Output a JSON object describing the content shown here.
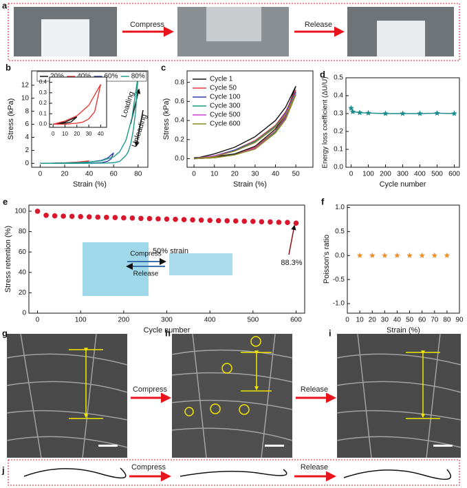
{
  "photo_panels": [
    {
      "label": "a",
      "steps": [
        "Compress",
        "Release"
      ]
    },
    {
      "labels": [
        "g",
        "h",
        "i"
      ],
      "steps": [
        "Compress",
        "Release"
      ]
    },
    {
      "label": "j",
      "steps": [
        "Compress",
        "Release"
      ]
    }
  ],
  "chart_data": [
    {
      "type": "line",
      "panel": "b",
      "x_label": "Strain (%)",
      "y_label": "Stress (kPa)",
      "legend": "top",
      "annotations": [
        "Loading",
        "Unloading"
      ],
      "xlim": [
        -7,
        88
      ],
      "ylim": [
        -0.6,
        14.2
      ],
      "xticks": [
        0,
        20,
        40,
        60,
        80
      ],
      "yticks": [
        0,
        2,
        4,
        6,
        8,
        10,
        12
      ],
      "series": [
        {
          "name": "20%",
          "color": "#111111",
          "x": [
            0,
            10,
            20,
            15,
            10,
            0
          ],
          "values": [
            0,
            0.02,
            0.07,
            0.02,
            0.01,
            0
          ]
        },
        {
          "name": "40%",
          "color": "#e8393a",
          "x": [
            0,
            10,
            20,
            30,
            40,
            35,
            30,
            25,
            20,
            10,
            0
          ],
          "values": [
            0,
            0.03,
            0.08,
            0.18,
            0.38,
            0.12,
            0.05,
            0.02,
            0.01,
            0,
            0
          ]
        },
        {
          "name": "60%",
          "color": "#2c3da8",
          "x": [
            0,
            10,
            20,
            30,
            40,
            50,
            55,
            60,
            58,
            55,
            50,
            40,
            20,
            0
          ],
          "values": [
            0,
            0.02,
            0.05,
            0.1,
            0.2,
            0.45,
            0.8,
            1.6,
            0.7,
            0.3,
            0.1,
            0.03,
            0,
            0
          ]
        },
        {
          "name": "80%",
          "color": "#1b9a8a",
          "x": [
            0,
            10,
            20,
            30,
            40,
            50,
            60,
            65,
            70,
            75,
            80,
            78,
            76,
            74,
            72,
            70,
            65,
            60,
            55,
            40,
            20,
            0
          ],
          "values": [
            0,
            0.02,
            0.05,
            0.1,
            0.2,
            0.4,
            1.0,
            1.8,
            3.5,
            7,
            13.5,
            8,
            5,
            3,
            1.8,
            1.2,
            0.3,
            0.1,
            0.05,
            0.01,
            0,
            0
          ]
        }
      ]
    },
    {
      "type": "line",
      "xlim": [
        -3,
        45
      ],
      "ylim": [
        -0.03,
        0.45
      ],
      "xticks": [
        0,
        10,
        20,
        30,
        40
      ],
      "yticks": [
        {
          "value": 0,
          "label": "0.0"
        },
        0.1,
        0.2,
        0.3,
        0.4
      ],
      "series": [
        {
          "color": "#111111",
          "x": [
            0,
            10,
            20,
            15,
            10,
            0
          ],
          "values": [
            0,
            0.02,
            0.07,
            0.02,
            0.01,
            0
          ]
        },
        {
          "color": "#e8393a",
          "x": [
            0,
            10,
            20,
            30,
            40,
            35,
            30,
            25,
            20,
            10,
            0
          ],
          "values": [
            0,
            0.03,
            0.08,
            0.18,
            0.38,
            0.12,
            0.05,
            0.02,
            0.01,
            0,
            0
          ]
        }
      ]
    },
    {
      "type": "line",
      "panel": "c",
      "x_label": "Strain (%)",
      "y_label": "Stress (kPa)",
      "legend": "upper left",
      "xlim": [
        -3.4,
        58.4
      ],
      "ylim": [
        -0.09,
        0.92
      ],
      "xticks": [
        0,
        10,
        20,
        30,
        40,
        50
      ],
      "yticks": [
        {
          "value": 0,
          "label": "0.0"
        },
        0.2,
        0.4,
        0.6,
        0.8
      ],
      "series": [
        {
          "name": "Cycle 1",
          "color": "#111111",
          "x": [
            0,
            10,
            20,
            30,
            40,
            45,
            50,
            45,
            40,
            30,
            20,
            10,
            0
          ],
          "values": [
            0,
            0.05,
            0.12,
            0.23,
            0.4,
            0.54,
            0.76,
            0.46,
            0.31,
            0.13,
            0.05,
            0.02,
            0.01
          ]
        },
        {
          "name": "Cycle 50",
          "color": "#e8393a",
          "x": [
            0,
            10,
            20,
            30,
            40,
            45,
            50,
            45,
            40,
            30,
            20,
            10,
            0
          ],
          "values": [
            0,
            0.03,
            0.09,
            0.19,
            0.35,
            0.49,
            0.72,
            0.44,
            0.29,
            0.12,
            0.04,
            0.01,
            0
          ]
        },
        {
          "name": "Cycle 100",
          "color": "#2c3da8",
          "x": [
            0,
            10,
            20,
            30,
            40,
            45,
            50,
            45,
            40,
            30,
            20,
            10,
            0
          ],
          "values": [
            0,
            0.03,
            0.09,
            0.18,
            0.34,
            0.48,
            0.7,
            0.43,
            0.28,
            0.11,
            0.04,
            0.01,
            0
          ]
        },
        {
          "name": "Cycle 300",
          "color": "#1b9a8a",
          "x": [
            0,
            10,
            20,
            30,
            40,
            45,
            50,
            45,
            40,
            30,
            20,
            10,
            0
          ],
          "values": [
            0,
            0.03,
            0.08,
            0.18,
            0.34,
            0.47,
            0.69,
            0.42,
            0.28,
            0.11,
            0.04,
            0.01,
            0
          ]
        },
        {
          "name": "Cycle 500",
          "color": "#d23fd2",
          "x": [
            0,
            10,
            20,
            30,
            40,
            45,
            50,
            45,
            40,
            30,
            20,
            10,
            0
          ],
          "values": [
            0,
            0.03,
            0.08,
            0.17,
            0.33,
            0.47,
            0.68,
            0.42,
            0.27,
            0.11,
            0.04,
            0.01,
            0
          ]
        },
        {
          "name": "Cycle 600",
          "color": "#8a8a1a",
          "x": [
            0,
            10,
            20,
            30,
            40,
            45,
            50,
            45,
            40,
            30,
            20,
            10,
            0
          ],
          "values": [
            0,
            0.02,
            0.08,
            0.17,
            0.33,
            0.46,
            0.67,
            0.41,
            0.27,
            0.1,
            0.04,
            0.01,
            0
          ]
        }
      ]
    },
    {
      "type": "line",
      "marker": "star",
      "panel": "d",
      "x_label": "Cycle number",
      "y_label": "Energy loss coefficient (ΔU/U)",
      "xlim": [
        -30,
        630
      ],
      "ylim": [
        0,
        0.5
      ],
      "xticks": [
        0,
        100,
        200,
        300,
        400,
        500,
        600
      ],
      "yticks": [
        {
          "value": 0,
          "label": "0.0"
        },
        0.1,
        0.2,
        0.3,
        0.4,
        0.5
      ],
      "series": [
        {
          "color": "#1a8a8a",
          "x": [
            0,
            10,
            50,
            100,
            200,
            300,
            400,
            500,
            600
          ],
          "values": [
            0.33,
            0.31,
            0.305,
            0.303,
            0.3,
            0.3,
            0.3,
            0.302,
            0.3
          ]
        }
      ]
    },
    {
      "type": "scatter",
      "marker": "circle",
      "panel": "e",
      "x_label": "Cycle number",
      "y_label": "Stress retention (%)",
      "annotations": [
        "50% strain",
        "88.3%"
      ],
      "diagram_labels": [
        "Compress",
        "Release"
      ],
      "xlim": [
        -20,
        620
      ],
      "ylim": [
        0,
        106
      ],
      "xticks": [
        0,
        100,
        200,
        300,
        400,
        500,
        600
      ],
      "yticks": [
        0,
        20,
        40,
        60,
        80,
        100
      ],
      "series": [
        {
          "color": "#d9162b",
          "x": [
            0,
            20,
            40,
            60,
            80,
            100,
            120,
            140,
            160,
            180,
            200,
            220,
            240,
            260,
            280,
            300,
            320,
            340,
            360,
            380,
            400,
            420,
            440,
            460,
            480,
            500,
            520,
            540,
            560,
            580,
            600
          ],
          "values": [
            100,
            96,
            95.5,
            95.2,
            95,
            94.7,
            94.5,
            94.2,
            94,
            93.8,
            93.5,
            93.3,
            93,
            92.8,
            92.5,
            92.3,
            92,
            91.8,
            91.5,
            91.3,
            91,
            90.8,
            90.6,
            90.4,
            90.2,
            90,
            89.7,
            89.5,
            89.2,
            89,
            88.3
          ]
        }
      ]
    },
    {
      "type": "scatter",
      "marker": "star",
      "panel": "f",
      "x_label": "Strain (%)",
      "y_label": "Poisson's ratio",
      "xlim": [
        0,
        90
      ],
      "ylim": [
        -1.2,
        1.05
      ],
      "xticks": [
        0,
        10,
        20,
        30,
        40,
        50,
        60,
        70,
        80,
        90
      ],
      "yticks": [
        {
          "value": -1,
          "label": "-1.0"
        },
        -0.5,
        {
          "value": 0,
          "label": "0.0"
        },
        0.5,
        {
          "value": 1,
          "label": "1.0"
        }
      ],
      "series": [
        {
          "color": "#f0902a",
          "x": [
            10,
            20,
            30,
            40,
            50,
            60,
            70,
            80
          ],
          "values": [
            0,
            0,
            0,
            0,
            0,
            0,
            0,
            0
          ]
        }
      ]
    }
  ]
}
